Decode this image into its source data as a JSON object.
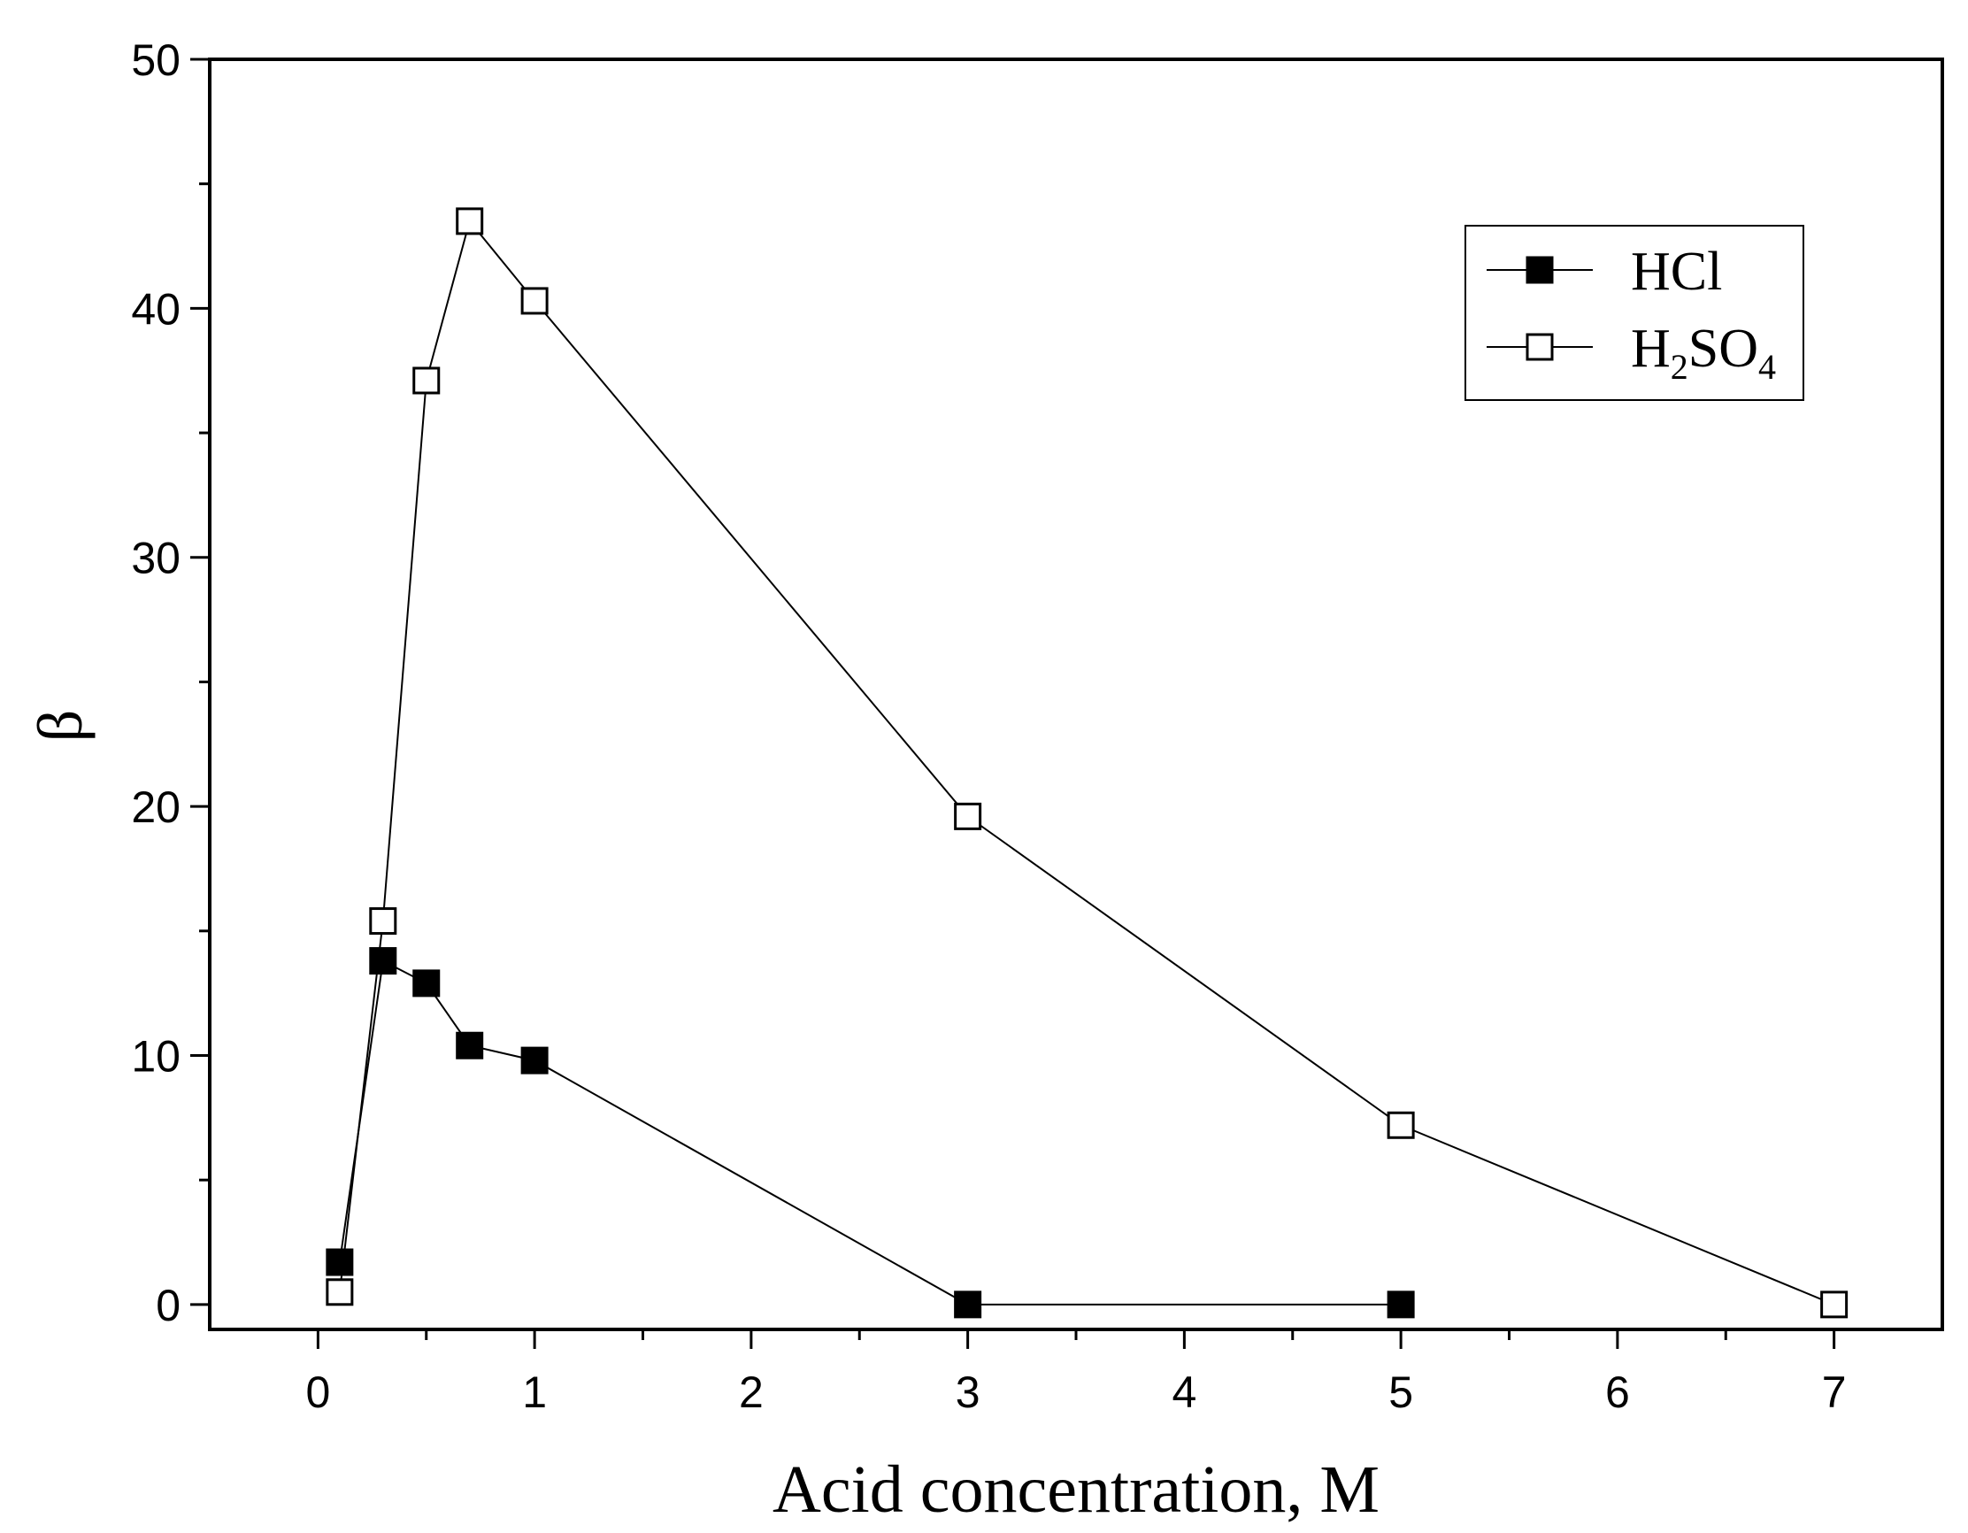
{
  "chart_data": {
    "type": "line",
    "xlabel": "Acid concentration, M",
    "ylabel": "β",
    "xlim": [
      -0.5,
      7.5
    ],
    "ylim": [
      -1,
      50
    ],
    "xticks": [
      0,
      1,
      2,
      3,
      4,
      5,
      6,
      7
    ],
    "xtick_labels": [
      "0",
      "1",
      "2",
      "3",
      "4",
      "5",
      "6",
      "7"
    ],
    "yticks": [
      0,
      10,
      20,
      30,
      40,
      50
    ],
    "ytick_labels": [
      "0",
      "10",
      "20",
      "30",
      "40",
      "50"
    ],
    "grid": false,
    "legend_position": "top-right",
    "series": [
      {
        "name": "HCl",
        "marker": "filled-square",
        "x": [
          0.1,
          0.3,
          0.5,
          0.7,
          1,
          3,
          5
        ],
        "y": [
          1.7,
          13.8,
          12.9,
          10.4,
          9.8,
          0,
          0
        ]
      },
      {
        "name": "H2SO4",
        "marker": "open-square",
        "x": [
          0.1,
          0.3,
          0.5,
          0.7,
          1,
          3,
          5,
          7
        ],
        "y": [
          0.5,
          15.4,
          37.1,
          43.5,
          40.3,
          19.6,
          7.2,
          0
        ]
      }
    ],
    "legend": {
      "hcl_label": "HCl",
      "h2so4_parts": {
        "h": "H",
        "sub1": "2",
        "so": "SO",
        "sub2": "4"
      }
    },
    "colors": {
      "line": "#000000",
      "background": "#ffffff"
    }
  }
}
